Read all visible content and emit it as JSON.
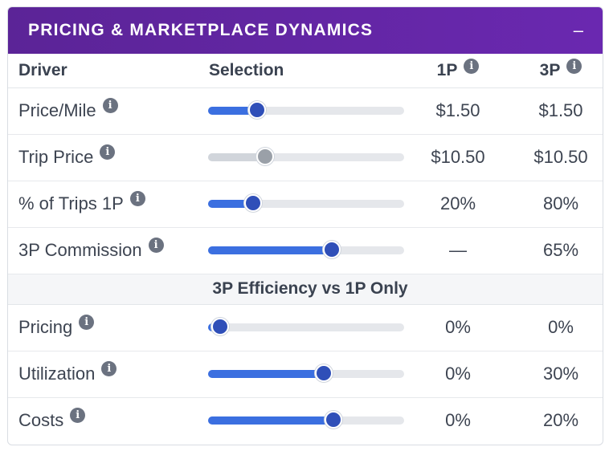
{
  "panel": {
    "title": "PRICING & MARKETPLACE DYNAMICS",
    "collapse_symbol": "–"
  },
  "columns": {
    "driver": "Driver",
    "selection": "Selection",
    "p1": "1P",
    "p3": "3P"
  },
  "rows": [
    {
      "label": "Price/Mile",
      "value_1p": "$1.50",
      "value_3p": "$1.50",
      "slider_fraction": 0.25,
      "disabled": false
    },
    {
      "label": "Trip Price",
      "value_1p": "$10.50",
      "value_3p": "$10.50",
      "slider_fraction": 0.29,
      "disabled": true
    },
    {
      "label": "% of Trips 1P",
      "value_1p": "20%",
      "value_3p": "80%",
      "slider_fraction": 0.23,
      "disabled": false
    },
    {
      "label": "3P Commission",
      "value_1p": "—",
      "value_3p": "65%",
      "slider_fraction": 0.63,
      "disabled": false
    }
  ],
  "section": {
    "title": "3P Efficiency vs 1P Only"
  },
  "efficiency_rows": [
    {
      "label": "Pricing",
      "value_1p": "0%",
      "value_3p": "0%",
      "slider_fraction": 0.06,
      "disabled": false
    },
    {
      "label": "Utilization",
      "value_1p": "0%",
      "value_3p": "30%",
      "slider_fraction": 0.59,
      "disabled": false
    },
    {
      "label": "Costs",
      "value_1p": "0%",
      "value_3p": "20%",
      "slider_fraction": 0.64,
      "disabled": false
    }
  ],
  "info_glyph": "i",
  "colors": {
    "header": "#6a28b0",
    "slider_fill": "#3b6fe0",
    "slider_thumb": "#2f4fb8",
    "disabled_thumb": "#9aa0a8"
  }
}
